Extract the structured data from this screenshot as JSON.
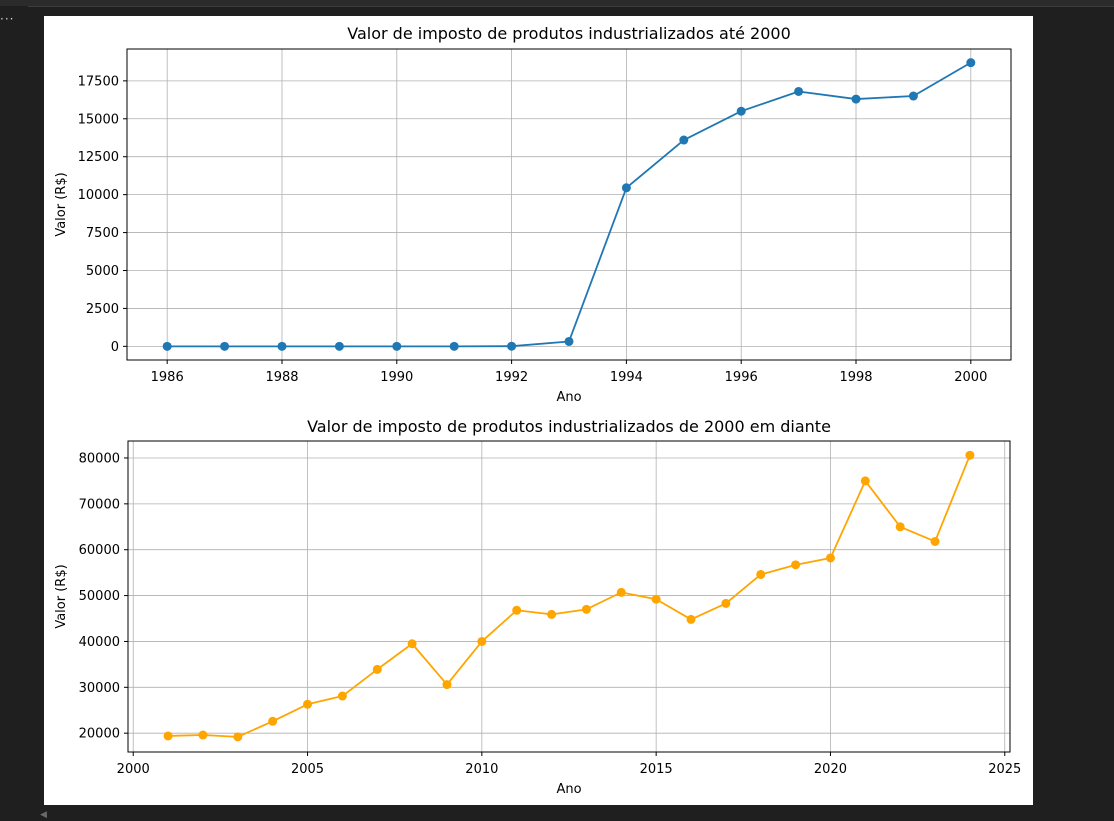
{
  "output_cell": {
    "overflow_icon": "ellipsis-icon",
    "scroll_icon": "scroll-left-icon"
  },
  "colors": {
    "series_top": "#1f77b4",
    "series_bottom": "#ffa500",
    "grid": "#b0b0b0"
  },
  "chart_data": [
    {
      "type": "line",
      "title": "Valor de imposto de produtos industrializados até 2000",
      "xlabel": "Ano",
      "ylabel": "Valor (R$)",
      "grid": true,
      "xlim": [
        1985.3,
        2000.7
      ],
      "ylim": [
        -900,
        19600
      ],
      "xticks": [
        1986,
        1988,
        1990,
        1992,
        1994,
        1996,
        1998,
        2000
      ],
      "yticks": [
        0,
        2500,
        5000,
        7500,
        10000,
        12500,
        15000,
        17500
      ],
      "series": [
        {
          "x": [
            1986,
            1987,
            1988,
            1989,
            1990,
            1991,
            1992,
            1993,
            1994,
            1995,
            1996,
            1997,
            1998,
            1999,
            2000
          ],
          "values": [
            0,
            0,
            0,
            0,
            0,
            0,
            10,
            320,
            10450,
            13600,
            15500,
            16800,
            16300,
            16500,
            18700
          ]
        }
      ]
    },
    {
      "type": "line",
      "title": "Valor de imposto de produtos industrializados de 2000 em diante",
      "xlabel": "Ano",
      "ylabel": "Valor (R$)",
      "grid": true,
      "xlim": [
        1999.85,
        2025.15
      ],
      "ylim": [
        15900,
        83700
      ],
      "xticks": [
        2000,
        2005,
        2010,
        2015,
        2020,
        2025
      ],
      "yticks": [
        20000,
        30000,
        40000,
        50000,
        60000,
        70000,
        80000
      ],
      "series": [
        {
          "x": [
            2001,
            2002,
            2003,
            2004,
            2005,
            2006,
            2007,
            2008,
            2009,
            2010,
            2011,
            2012,
            2013,
            2014,
            2015,
            2016,
            2017,
            2018,
            2019,
            2020,
            2021,
            2022,
            2023,
            2024
          ],
          "values": [
            19400,
            19600,
            19200,
            22600,
            26300,
            28100,
            33900,
            39500,
            30600,
            40000,
            46800,
            45900,
            47000,
            50700,
            49200,
            44800,
            48300,
            54600,
            56700,
            58200,
            75000,
            65000,
            61800,
            80600
          ]
        }
      ]
    }
  ]
}
